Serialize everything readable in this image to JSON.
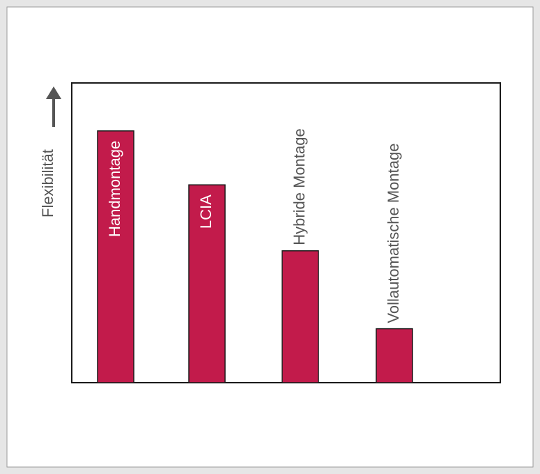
{
  "chart_data": {
    "type": "bar",
    "y_label": "Flexibilität",
    "categories": [
      "Handmontage",
      "LCIA",
      "Hybride Montage",
      "Vollautomatische Montage"
    ],
    "values": [
      84,
      66,
      44,
      18
    ],
    "color": "#c21b4b",
    "ylim": [
      0,
      100
    ]
  }
}
